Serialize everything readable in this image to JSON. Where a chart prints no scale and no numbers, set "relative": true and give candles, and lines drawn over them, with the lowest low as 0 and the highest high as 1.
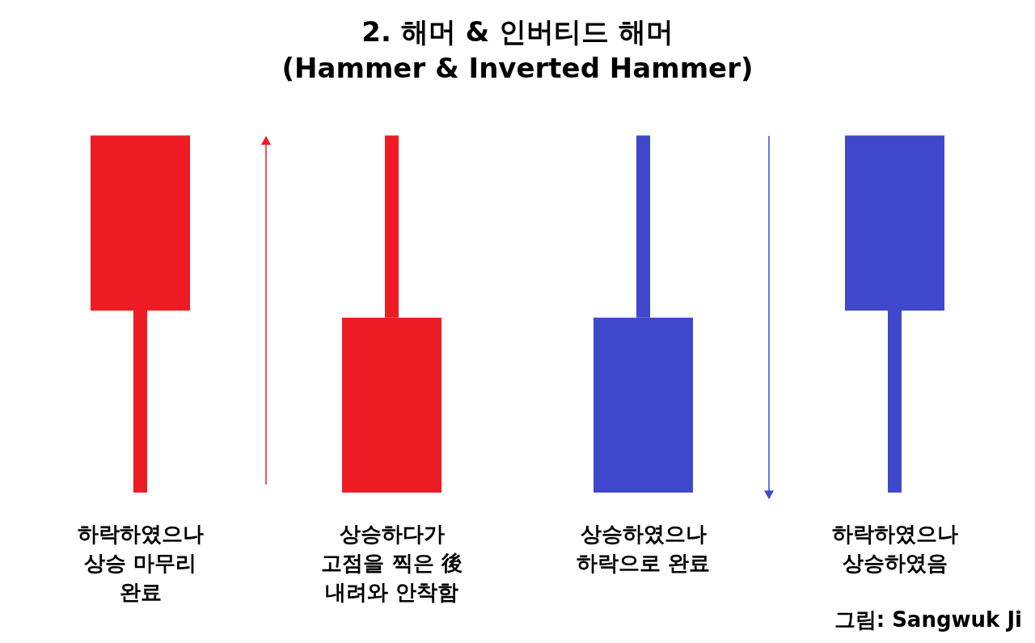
{
  "chart_data": {
    "type": "candlestick",
    "title": "2. 해머 & 인버티드 해머",
    "subtitle": "(Hammer & Inverted Hammer)",
    "relative": true,
    "categories": [
      null,
      null,
      null,
      null
    ],
    "ohlc": [
      [
        0.51,
        1,
        0,
        1
      ],
      [
        0,
        1,
        0,
        0.49
      ],
      [
        0.49,
        1,
        0,
        0
      ],
      [
        1,
        1,
        0,
        0.51
      ]
    ],
    "colors": [
      "#ed1c24",
      "#ed1c24",
      "#3f48cc",
      "#3f48cc"
    ],
    "annotations": [
      "하락하였으나\n상승 마무리\n완료",
      "상승하다가\n고점을 찍은 後\n내려와 안착함",
      "상승하였으나\n하락으로 완료",
      "하락하였으나\n상승하였음",
      "그림: Sangwuk Ji"
    ]
  }
}
